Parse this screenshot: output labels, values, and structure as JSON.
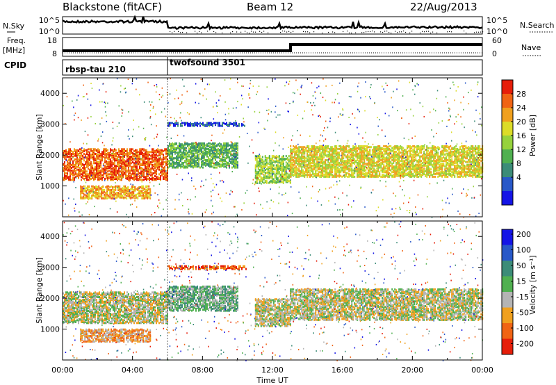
{
  "header": {
    "station": "Blackstone (fitACF)",
    "beam": "Beam 12",
    "date": "22/Aug/2013"
  },
  "strips": {
    "nsky_label": "N.Sky",
    "nsearch_label": "N.Search",
    "freq_label_1": "Freq.",
    "freq_label_2": "[MHz]",
    "nave_label": "Nave",
    "cpid_label": "CPID",
    "nsky_ticks": [
      "10^5",
      "10^0"
    ],
    "nsearch_ticks": [
      "10^5",
      "10^0"
    ],
    "freq_ticks": [
      "18",
      "8"
    ],
    "nave_ticks": [
      "60",
      "0"
    ],
    "cpid_segments": [
      {
        "name": "rbsp-tau 210",
        "start_hour": 0,
        "end_hour": 6
      },
      {
        "name": "twofsound 3501",
        "start_hour": 6,
        "end_hour": 24
      }
    ]
  },
  "time_axis": {
    "label": "Time UT",
    "ticks": [
      "00:00",
      "04:00",
      "08:00",
      "12:00",
      "16:00",
      "20:00",
      "00:00"
    ],
    "hours": [
      0,
      4,
      8,
      12,
      16,
      20,
      24
    ]
  },
  "colors": {
    "power": [
      "#1414e6",
      "#2858c8",
      "#3c8c78",
      "#50b050",
      "#96d23c",
      "#dcdc28",
      "#f0a01e",
      "#f06414",
      "#e61e0a"
    ],
    "velocity": [
      "#1414e6",
      "#2858c8",
      "#3c8c78",
      "#50b050",
      "#b4b4b4",
      "#f0a01e",
      "#f06414",
      "#e61e0a"
    ]
  },
  "chart_data": [
    {
      "type": "heatmap",
      "panel": "power",
      "ylabel": "Slant Range [km]",
      "xlabel": "",
      "xlim": [
        0,
        24
      ],
      "ylim": [
        0,
        4500
      ],
      "yticks": [
        "1000",
        "2000",
        "3000",
        "4000"
      ],
      "colorbar_label": "Power [dB]",
      "colorbar_ticks": [
        "4",
        "8",
        "12",
        "16",
        "20",
        "24",
        "28"
      ],
      "bands": [
        {
          "t0": 0.0,
          "t1": 6.0,
          "r0": 1200,
          "r1": 2200,
          "level": 7
        },
        {
          "t0": 1.0,
          "t1": 5.0,
          "r0": 600,
          "r1": 1000,
          "level": 6
        },
        {
          "t0": 6.0,
          "t1": 10.0,
          "r0": 1600,
          "r1": 2400,
          "level": 3
        },
        {
          "t0": 6.0,
          "t1": 10.5,
          "r0": 2950,
          "r1": 3050,
          "level": 1
        },
        {
          "t0": 11.0,
          "t1": 13.0,
          "r0": 1100,
          "r1": 2000,
          "level": 4
        },
        {
          "t0": 13.0,
          "t1": 24.0,
          "r0": 1300,
          "r1": 2300,
          "level": 5
        }
      ]
    },
    {
      "type": "heatmap",
      "panel": "velocity",
      "ylabel": "Slant Range [km]",
      "xlabel": "Time UT",
      "xlim": [
        0,
        24
      ],
      "ylim": [
        0,
        4500
      ],
      "yticks": [
        "1000",
        "2000",
        "3000",
        "4000"
      ],
      "colorbar_label": "Velocity [m s⁻¹]",
      "colorbar_ticks": [
        "200",
        "100",
        "50",
        "15",
        "-15",
        "-50",
        "-100",
        "-200"
      ],
      "bands": [
        {
          "t0": 0.0,
          "t1": 6.0,
          "r0": 1200,
          "r1": 2200,
          "level": 4
        },
        {
          "t0": 1.0,
          "t1": 5.0,
          "r0": 600,
          "r1": 1000,
          "level": 5
        },
        {
          "t0": 6.0,
          "t1": 10.0,
          "r0": 1600,
          "r1": 2400,
          "level": 3
        },
        {
          "t0": 6.0,
          "t1": 10.5,
          "r0": 2950,
          "r1": 3050,
          "level": 6
        },
        {
          "t0": 11.0,
          "t1": 13.0,
          "r0": 1100,
          "r1": 2000,
          "level": 4
        },
        {
          "t0": 13.0,
          "t1": 24.0,
          "r0": 1300,
          "r1": 2300,
          "level": 4
        }
      ]
    }
  ]
}
